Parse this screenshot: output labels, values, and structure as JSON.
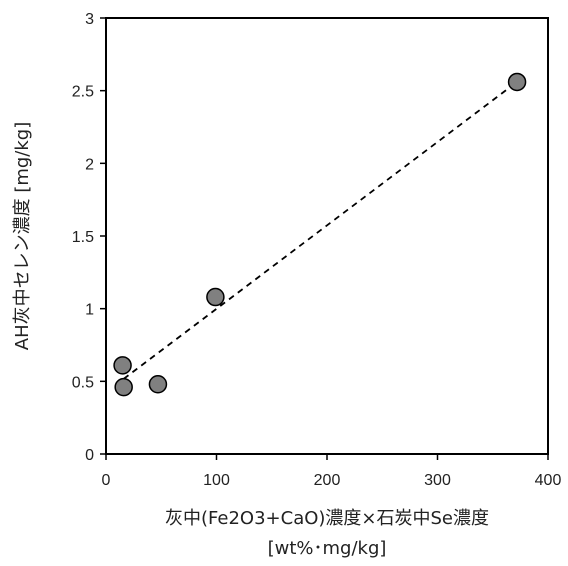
{
  "chart_data": {
    "type": "scatter",
    "xlabel_line1": "灰中(Fe2O3+CaO)濃度×石炭中Se濃度",
    "xlabel_line2": "[wt%･mg/kg]",
    "ylabel": "AH灰中セレン濃度 [mg/kg]",
    "xlim": [
      0,
      400
    ],
    "ylim": [
      0,
      3
    ],
    "xticks": [
      0,
      100,
      200,
      300,
      400
    ],
    "yticks": [
      0,
      0.5,
      1,
      1.5,
      2,
      2.5,
      3
    ],
    "xtick_labels": [
      "0",
      "100",
      "200",
      "300",
      "400"
    ],
    "ytick_labels": [
      "0",
      "0.5",
      "1",
      "1.5",
      "2",
      "2.5",
      "3"
    ],
    "grid": false,
    "series": [
      {
        "points": [
          {
            "x": 15,
            "y": 0.61
          },
          {
            "x": 16,
            "y": 0.46
          },
          {
            "x": 47,
            "y": 0.48
          },
          {
            "x": 99,
            "y": 1.08
          },
          {
            "x": 372,
            "y": 2.56
          }
        ],
        "marker_color": "#808080"
      }
    ],
    "trendline": {
      "type": "linear",
      "style": "dashed",
      "from_x": 16,
      "to_x": 372,
      "slope": 0.00574,
      "intercept": 0.425
    }
  }
}
